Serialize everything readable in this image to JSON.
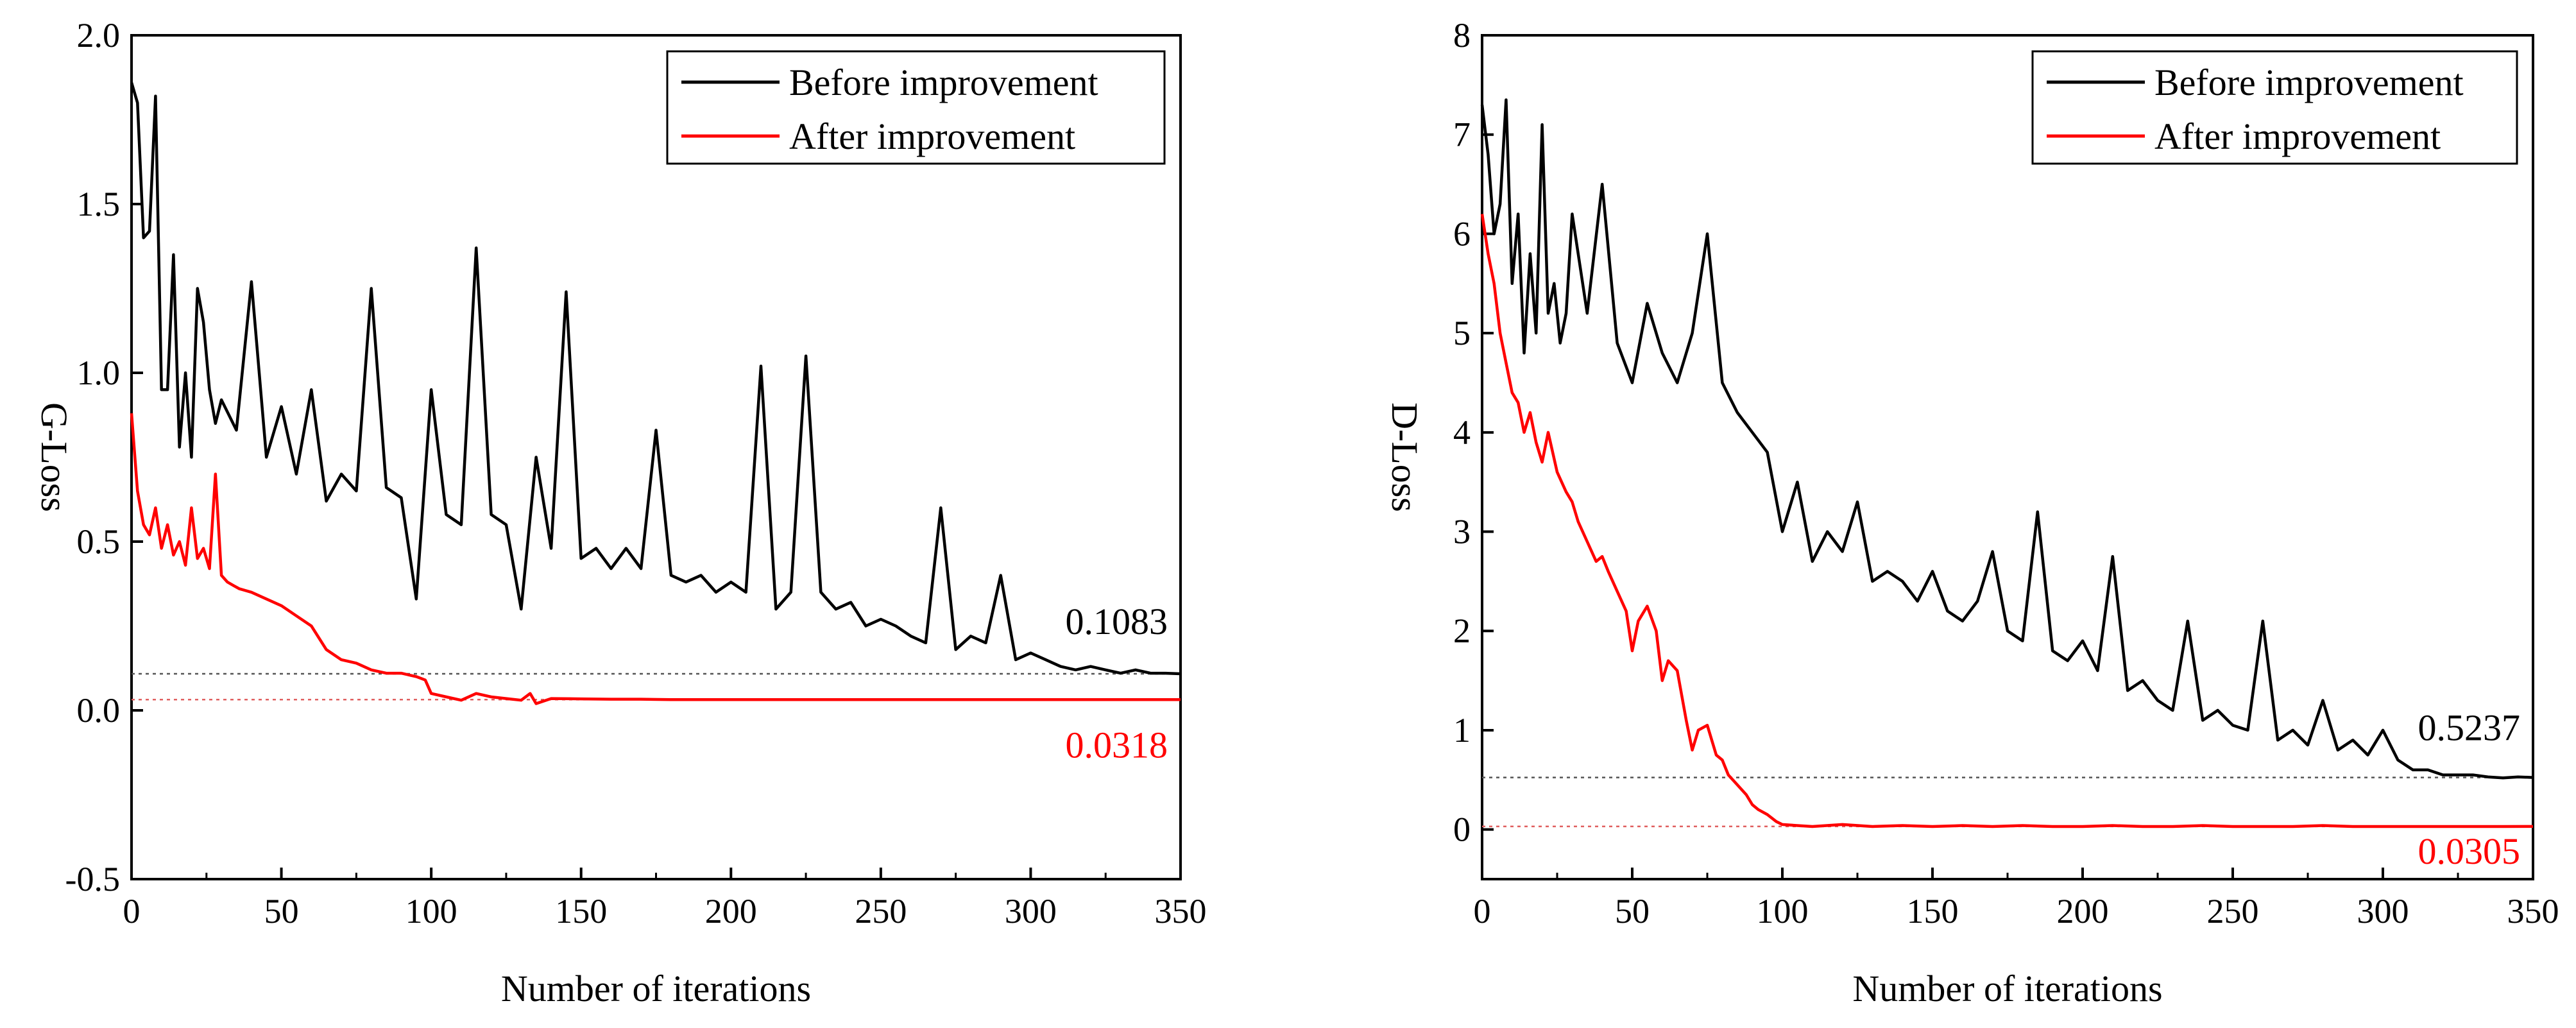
{
  "colors": {
    "before": "#000000",
    "after": "#ff0000",
    "ref_line_before": "#555555",
    "ref_line_after": "#e06060"
  },
  "chart_data": [
    {
      "type": "line",
      "xlabel": "Number of iterations",
      "ylabel": "G-Loss",
      "xlim": [
        0,
        350
      ],
      "ylim": [
        -0.5,
        2.0
      ],
      "xticks": [
        "0",
        "50",
        "100",
        "150",
        "200",
        "250",
        "300",
        "350"
      ],
      "yticks": [
        "-0.5",
        "0.0",
        "0.5",
        "1.0",
        "1.5",
        "2.0"
      ],
      "legend_position": "top-right",
      "annotations": [
        {
          "text": "0.1083",
          "y": 0.1083,
          "series": "Before improvement"
        },
        {
          "text": "0.0318",
          "y": 0.0318,
          "series": "After improvement"
        }
      ],
      "series": [
        {
          "name": "Before improvement",
          "x": [
            0,
            2,
            4,
            6,
            8,
            10,
            12,
            14,
            16,
            18,
            20,
            22,
            24,
            26,
            28,
            30,
            35,
            40,
            45,
            50,
            55,
            60,
            65,
            70,
            75,
            80,
            85,
            90,
            95,
            100,
            105,
            110,
            115,
            120,
            125,
            130,
            135,
            140,
            145,
            150,
            155,
            160,
            165,
            170,
            175,
            180,
            185,
            190,
            195,
            200,
            205,
            210,
            215,
            220,
            225,
            230,
            235,
            240,
            245,
            250,
            255,
            260,
            265,
            270,
            275,
            280,
            285,
            290,
            295,
            300,
            305,
            310,
            315,
            320,
            325,
            330,
            335,
            340,
            345,
            350
          ],
          "y": [
            1.86,
            1.8,
            1.4,
            1.42,
            1.82,
            0.95,
            0.95,
            1.35,
            0.78,
            1.0,
            0.75,
            1.25,
            1.15,
            0.95,
            0.85,
            0.92,
            0.83,
            1.27,
            0.75,
            0.9,
            0.7,
            0.95,
            0.62,
            0.7,
            0.65,
            1.25,
            0.66,
            0.63,
            0.33,
            0.95,
            0.58,
            0.55,
            1.37,
            0.58,
            0.55,
            0.3,
            0.75,
            0.48,
            1.24,
            0.45,
            0.48,
            0.42,
            0.48,
            0.42,
            0.83,
            0.4,
            0.38,
            0.4,
            0.35,
            0.38,
            0.35,
            1.02,
            0.3,
            0.35,
            1.05,
            0.35,
            0.3,
            0.32,
            0.25,
            0.27,
            0.25,
            0.22,
            0.2,
            0.6,
            0.18,
            0.22,
            0.2,
            0.4,
            0.15,
            0.17,
            0.15,
            0.13,
            0.12,
            0.13,
            0.12,
            0.11,
            0.12,
            0.11,
            0.11,
            0.1083
          ]
        },
        {
          "name": "After improvement",
          "x": [
            0,
            2,
            4,
            6,
            8,
            10,
            12,
            14,
            16,
            18,
            20,
            22,
            24,
            26,
            28,
            30,
            32,
            34,
            36,
            40,
            45,
            50,
            55,
            60,
            65,
            70,
            75,
            80,
            85,
            90,
            95,
            98,
            100,
            105,
            110,
            115,
            120,
            125,
            130,
            133,
            135,
            140,
            150,
            160,
            170,
            180,
            190,
            200,
            210,
            220,
            230,
            240,
            250,
            260,
            270,
            280,
            290,
            300,
            310,
            320,
            330,
            340,
            350
          ],
          "y": [
            0.88,
            0.65,
            0.55,
            0.52,
            0.6,
            0.48,
            0.55,
            0.46,
            0.5,
            0.43,
            0.6,
            0.45,
            0.48,
            0.42,
            0.7,
            0.4,
            0.38,
            0.37,
            0.36,
            0.35,
            0.33,
            0.31,
            0.28,
            0.25,
            0.18,
            0.15,
            0.14,
            0.12,
            0.11,
            0.11,
            0.1,
            0.09,
            0.05,
            0.04,
            0.03,
            0.05,
            0.04,
            0.035,
            0.03,
            0.05,
            0.02,
            0.035,
            0.034,
            0.033,
            0.033,
            0.032,
            0.032,
            0.032,
            0.032,
            0.032,
            0.032,
            0.032,
            0.032,
            0.032,
            0.032,
            0.032,
            0.032,
            0.032,
            0.032,
            0.032,
            0.032,
            0.032,
            0.0318
          ]
        }
      ]
    },
    {
      "type": "line",
      "xlabel": "Number of iterations",
      "ylabel": "D-Loss",
      "xlim": [
        0,
        350
      ],
      "ylim": [
        -0.5,
        8
      ],
      "xticks": [
        "0",
        "50",
        "100",
        "150",
        "200",
        "250",
        "300",
        "350"
      ],
      "yticks": [
        "0",
        "1",
        "2",
        "3",
        "4",
        "5",
        "6",
        "7",
        "8"
      ],
      "legend_position": "top-right",
      "annotations": [
        {
          "text": "0.5237",
          "y": 0.5237,
          "series": "Before improvement"
        },
        {
          "text": "0.0305",
          "y": 0.0305,
          "series": "After improvement"
        }
      ],
      "series": [
        {
          "name": "Before improvement",
          "x": [
            0,
            2,
            4,
            6,
            8,
            10,
            12,
            14,
            16,
            18,
            20,
            22,
            24,
            26,
            28,
            30,
            35,
            40,
            45,
            50,
            55,
            60,
            65,
            70,
            75,
            80,
            85,
            90,
            95,
            100,
            105,
            110,
            115,
            120,
            125,
            130,
            135,
            140,
            145,
            150,
            155,
            160,
            165,
            170,
            175,
            180,
            185,
            190,
            195,
            200,
            205,
            210,
            215,
            220,
            225,
            230,
            235,
            240,
            245,
            250,
            255,
            260,
            265,
            270,
            275,
            280,
            285,
            290,
            295,
            300,
            305,
            310,
            315,
            320,
            325,
            330,
            335,
            340,
            345,
            350
          ],
          "y": [
            7.3,
            6.8,
            6.0,
            6.3,
            7.35,
            5.5,
            6.2,
            4.8,
            5.8,
            5.0,
            7.1,
            5.2,
            5.5,
            4.9,
            5.2,
            6.2,
            5.2,
            6.5,
            4.9,
            4.5,
            5.3,
            4.8,
            4.5,
            5.0,
            6.0,
            4.5,
            4.2,
            4.0,
            3.8,
            3.0,
            3.5,
            2.7,
            3.0,
            2.8,
            3.3,
            2.5,
            2.6,
            2.5,
            2.3,
            2.6,
            2.2,
            2.1,
            2.3,
            2.8,
            2.0,
            1.9,
            3.2,
            1.8,
            1.7,
            1.9,
            1.6,
            2.75,
            1.4,
            1.5,
            1.3,
            1.2,
            2.1,
            1.1,
            1.2,
            1.05,
            1.0,
            2.1,
            0.9,
            1.0,
            0.85,
            1.3,
            0.8,
            0.9,
            0.75,
            1.0,
            0.7,
            0.6,
            0.6,
            0.55,
            0.55,
            0.55,
            0.53,
            0.52,
            0.53,
            0.5237
          ]
        },
        {
          "name": "After improvement",
          "x": [
            0,
            2,
            4,
            6,
            8,
            10,
            12,
            14,
            16,
            18,
            20,
            22,
            25,
            28,
            30,
            32,
            35,
            38,
            40,
            42,
            45,
            48,
            50,
            52,
            55,
            58,
            60,
            62,
            65,
            68,
            70,
            72,
            75,
            78,
            80,
            82,
            85,
            88,
            90,
            92,
            95,
            98,
            100,
            105,
            110,
            120,
            130,
            140,
            150,
            160,
            170,
            180,
            190,
            200,
            210,
            220,
            230,
            240,
            250,
            260,
            270,
            280,
            290,
            300,
            310,
            320,
            330,
            340,
            350
          ],
          "y": [
            6.2,
            5.8,
            5.5,
            5.0,
            4.7,
            4.4,
            4.3,
            4.0,
            4.2,
            3.9,
            3.7,
            4.0,
            3.6,
            3.4,
            3.3,
            3.1,
            2.9,
            2.7,
            2.75,
            2.6,
            2.4,
            2.2,
            1.8,
            2.1,
            2.25,
            2.0,
            1.5,
            1.7,
            1.6,
            1.1,
            0.8,
            1.0,
            1.05,
            0.75,
            0.7,
            0.55,
            0.45,
            0.35,
            0.25,
            0.2,
            0.15,
            0.08,
            0.05,
            0.04,
            0.03,
            0.05,
            0.03,
            0.04,
            0.03,
            0.04,
            0.03,
            0.04,
            0.03,
            0.03,
            0.04,
            0.03,
            0.03,
            0.04,
            0.03,
            0.03,
            0.03,
            0.04,
            0.03,
            0.03,
            0.03,
            0.03,
            0.03,
            0.03,
            0.0305
          ]
        }
      ]
    }
  ]
}
